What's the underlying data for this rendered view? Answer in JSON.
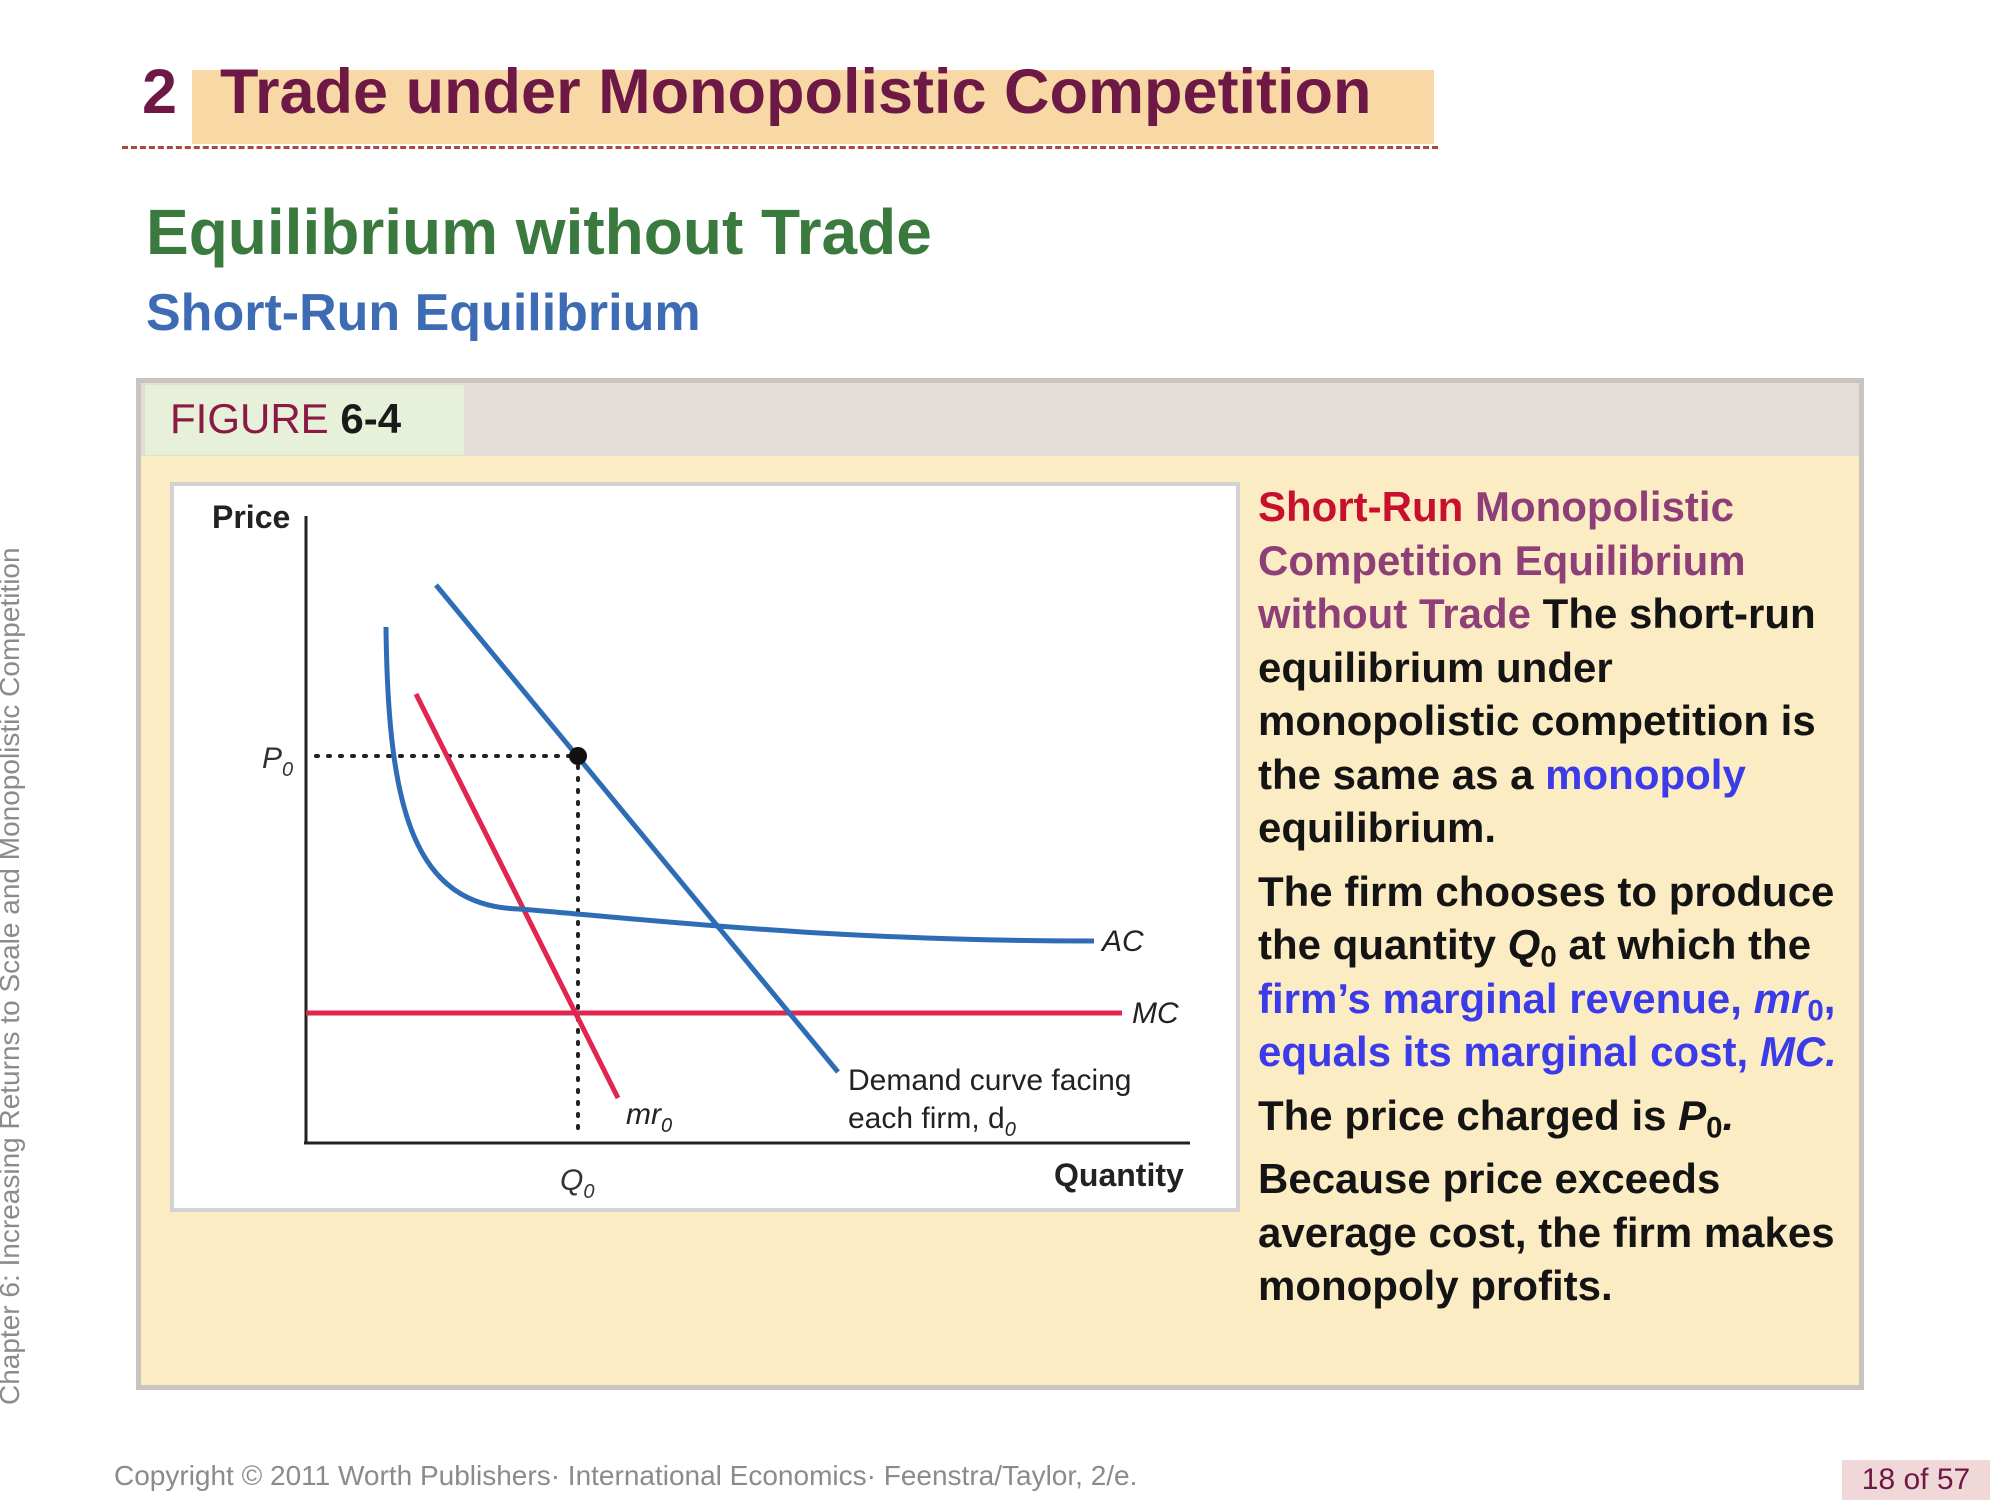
{
  "slide": {
    "section_number": "2",
    "title": "Trade under Monopolistic Competition",
    "heading": "Equilibrium without Trade",
    "subheading": "Short-Run Equilibrium",
    "side_label": "Chapter 6: Increasing Returns to Scale and Monopolistic Competition",
    "copyright": "Copyright © 2011 Worth Publishers· International Economics· Feenstra/Taylor, 2/e.",
    "page_number": "18 of 57"
  },
  "figure": {
    "label_word": "FIGURE ",
    "label_number": "6-4",
    "diagram": {
      "y_axis_label": "Price",
      "x_axis_label": "Quantity",
      "price_marker": "P",
      "price_marker_sub": "0",
      "quantity_marker": "Q",
      "quantity_marker_sub": "0",
      "curve_ac": "AC",
      "curve_mc": "MC",
      "curve_mr": "mr",
      "curve_mr_sub": "0",
      "demand_line1": "Demand curve facing",
      "demand_line2": "each firm, d",
      "demand_sub": "0",
      "colors": {
        "cost_curves": "#2e6db5",
        "revenue_curves": "#e0264f",
        "axes": "#222222"
      }
    }
  },
  "caption": {
    "p1_red": "Short-Run",
    "p1_purple": " Monopolistic Competition Equilibrium without Trade",
    "p1_body": " The short-run equilibrium under monopolistic competition is the same as a ",
    "p1_blue": "monopoly",
    "p1_end": " equilibrium.",
    "p2_a": "The firm chooses to produce the quantity ",
    "p2_q": "Q",
    "p2_q_sub": "0",
    "p2_b": " at which the ",
    "p2_blue_a": "firm’s marginal revenue, ",
    "p2_blue_mr": "mr",
    "p2_blue_mr_sub": "0",
    "p2_blue_b": ", equals its marginal cost, ",
    "p2_blue_mc": "MC.",
    "p3_a": "The price charged is ",
    "p3_p": "P",
    "p3_p_sub": "0",
    "p3_end": ".",
    "p4": "Because price exceeds average cost, the firm makes monopoly profits."
  }
}
